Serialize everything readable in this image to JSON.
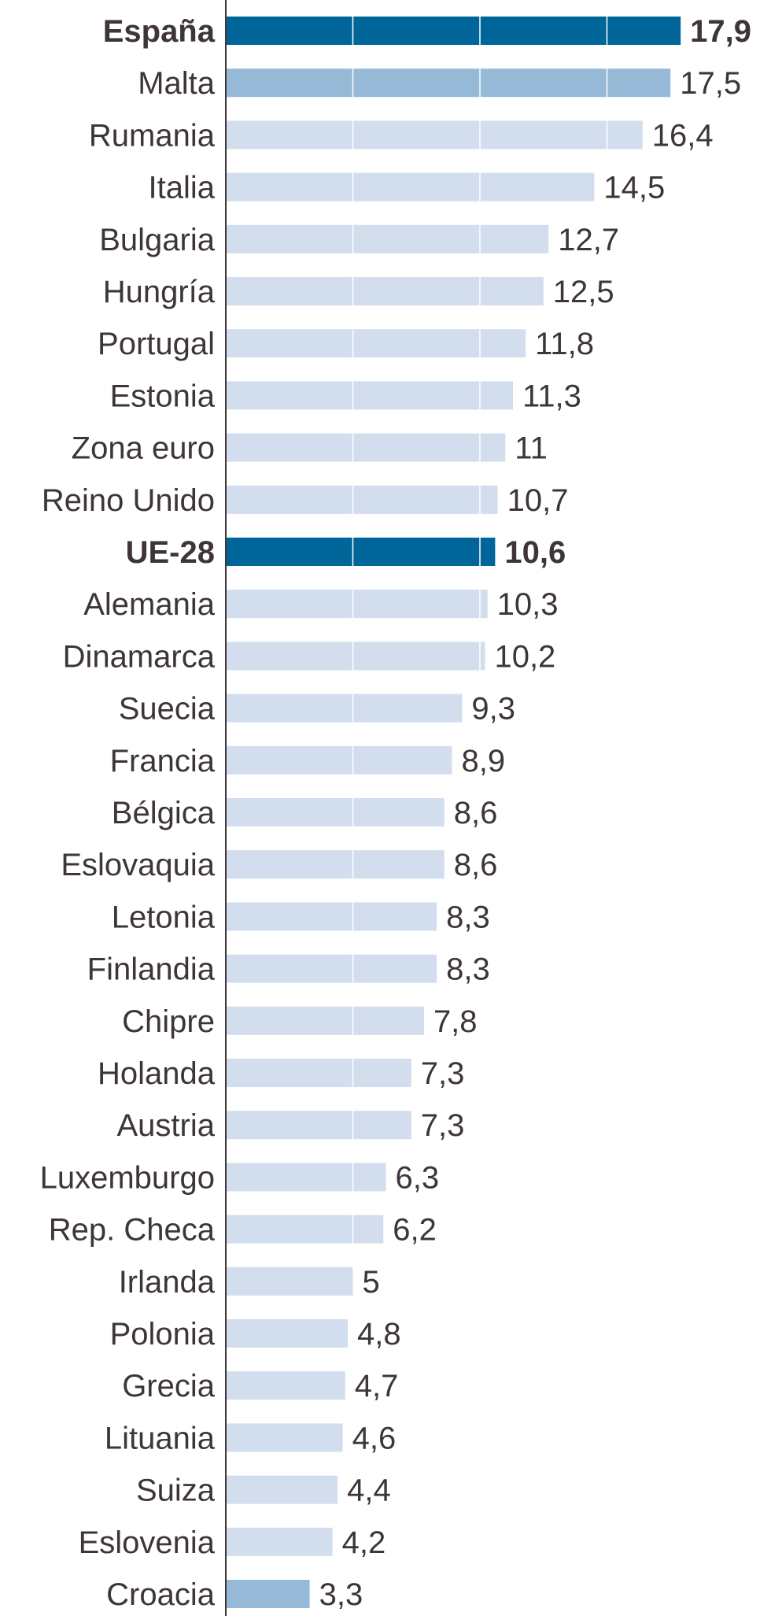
{
  "chart_data": {
    "type": "bar",
    "orientation": "horizontal",
    "title": "",
    "xlabel": "",
    "ylabel": "",
    "xlim": [
      0,
      20
    ],
    "gridlines": [
      5,
      10,
      15
    ],
    "grid": true,
    "colors": {
      "highlight": "#006699",
      "secondary": "#95b9d6",
      "default": "#d2deee",
      "axis": "#3d3539",
      "text": "#3d3539",
      "grid": "#ffffff"
    },
    "categories": [
      "España",
      "Malta",
      "Rumania",
      "Italia",
      "Bulgaria",
      "Hungría",
      "Portugal",
      "Estonia",
      "Zona euro",
      "Reino Unido",
      "UE-28",
      "Alemania",
      "Dinamarca",
      "Suecia",
      "Francia",
      "Bélgica",
      "Eslovaquia",
      "Letonia",
      "Finlandia",
      "Chipre",
      "Holanda",
      "Austria",
      "Luxemburgo",
      "Rep. Checa",
      "Irlanda",
      "Polonia",
      "Grecia",
      "Lituania",
      "Suiza",
      "Eslovenia",
      "Croacia"
    ],
    "values": [
      17.9,
      17.5,
      16.4,
      14.5,
      12.7,
      12.5,
      11.8,
      11.3,
      11,
      10.7,
      10.6,
      10.3,
      10.2,
      9.3,
      8.9,
      8.6,
      8.6,
      8.3,
      8.3,
      7.8,
      7.3,
      7.3,
      6.3,
      6.2,
      5,
      4.8,
      4.7,
      4.6,
      4.4,
      4.2,
      3.3
    ],
    "value_labels": [
      "17,9",
      "17,5",
      "16,4",
      "14,5",
      "12,7",
      "12,5",
      "11,8",
      "11,3",
      "11",
      "10,7",
      "10,6",
      "10,3",
      "10,2",
      "9,3",
      "8,9",
      "8,6",
      "8,6",
      "8,3",
      "8,3",
      "7,8",
      "7,3",
      "7,3",
      "6,3",
      "6,2",
      "5",
      "4,8",
      "4,7",
      "4,6",
      "4,4",
      "4,2",
      "3,3"
    ],
    "styles": [
      "highlight",
      "secondary",
      "default",
      "default",
      "default",
      "default",
      "default",
      "default",
      "default",
      "default",
      "highlight",
      "default",
      "default",
      "default",
      "default",
      "default",
      "default",
      "default",
      "default",
      "default",
      "default",
      "default",
      "default",
      "default",
      "default",
      "default",
      "default",
      "default",
      "default",
      "default",
      "secondary"
    ],
    "bold": [
      true,
      false,
      false,
      false,
      false,
      false,
      false,
      false,
      false,
      false,
      true,
      false,
      false,
      false,
      false,
      false,
      false,
      false,
      false,
      false,
      false,
      false,
      false,
      false,
      false,
      false,
      false,
      false,
      false,
      false,
      false
    ]
  }
}
